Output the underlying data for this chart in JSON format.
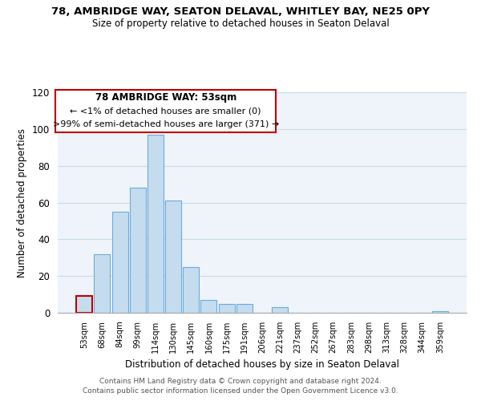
{
  "title1": "78, AMBRIDGE WAY, SEATON DELAVAL, WHITLEY BAY, NE25 0PY",
  "title2": "Size of property relative to detached houses in Seaton Delaval",
  "xlabel": "Distribution of detached houses by size in Seaton Delaval",
  "ylabel": "Number of detached properties",
  "bar_labels": [
    "53sqm",
    "68sqm",
    "84sqm",
    "99sqm",
    "114sqm",
    "130sqm",
    "145sqm",
    "160sqm",
    "175sqm",
    "191sqm",
    "206sqm",
    "221sqm",
    "237sqm",
    "252sqm",
    "267sqm",
    "283sqm",
    "298sqm",
    "313sqm",
    "328sqm",
    "344sqm",
    "359sqm"
  ],
  "bar_values": [
    9,
    32,
    55,
    68,
    97,
    61,
    25,
    7,
    5,
    5,
    0,
    3,
    0,
    0,
    0,
    0,
    0,
    0,
    0,
    0,
    1
  ],
  "highlight_index": 0,
  "bar_color": "#c5dcee",
  "bar_edge_color": "#6aabe0",
  "highlight_edge_color": "#c00000",
  "annotation_title": "78 AMBRIDGE WAY: 53sqm",
  "annotation_line1": "← <1% of detached houses are smaller (0)",
  "annotation_line2": ">99% of semi-detached houses are larger (371) →",
  "annotation_box_edge": "#c00000",
  "ylim": [
    0,
    120
  ],
  "yticks": [
    0,
    20,
    40,
    60,
    80,
    100,
    120
  ],
  "footer1": "Contains HM Land Registry data © Crown copyright and database right 2024.",
  "footer2": "Contains public sector information licensed under the Open Government Licence v3.0."
}
